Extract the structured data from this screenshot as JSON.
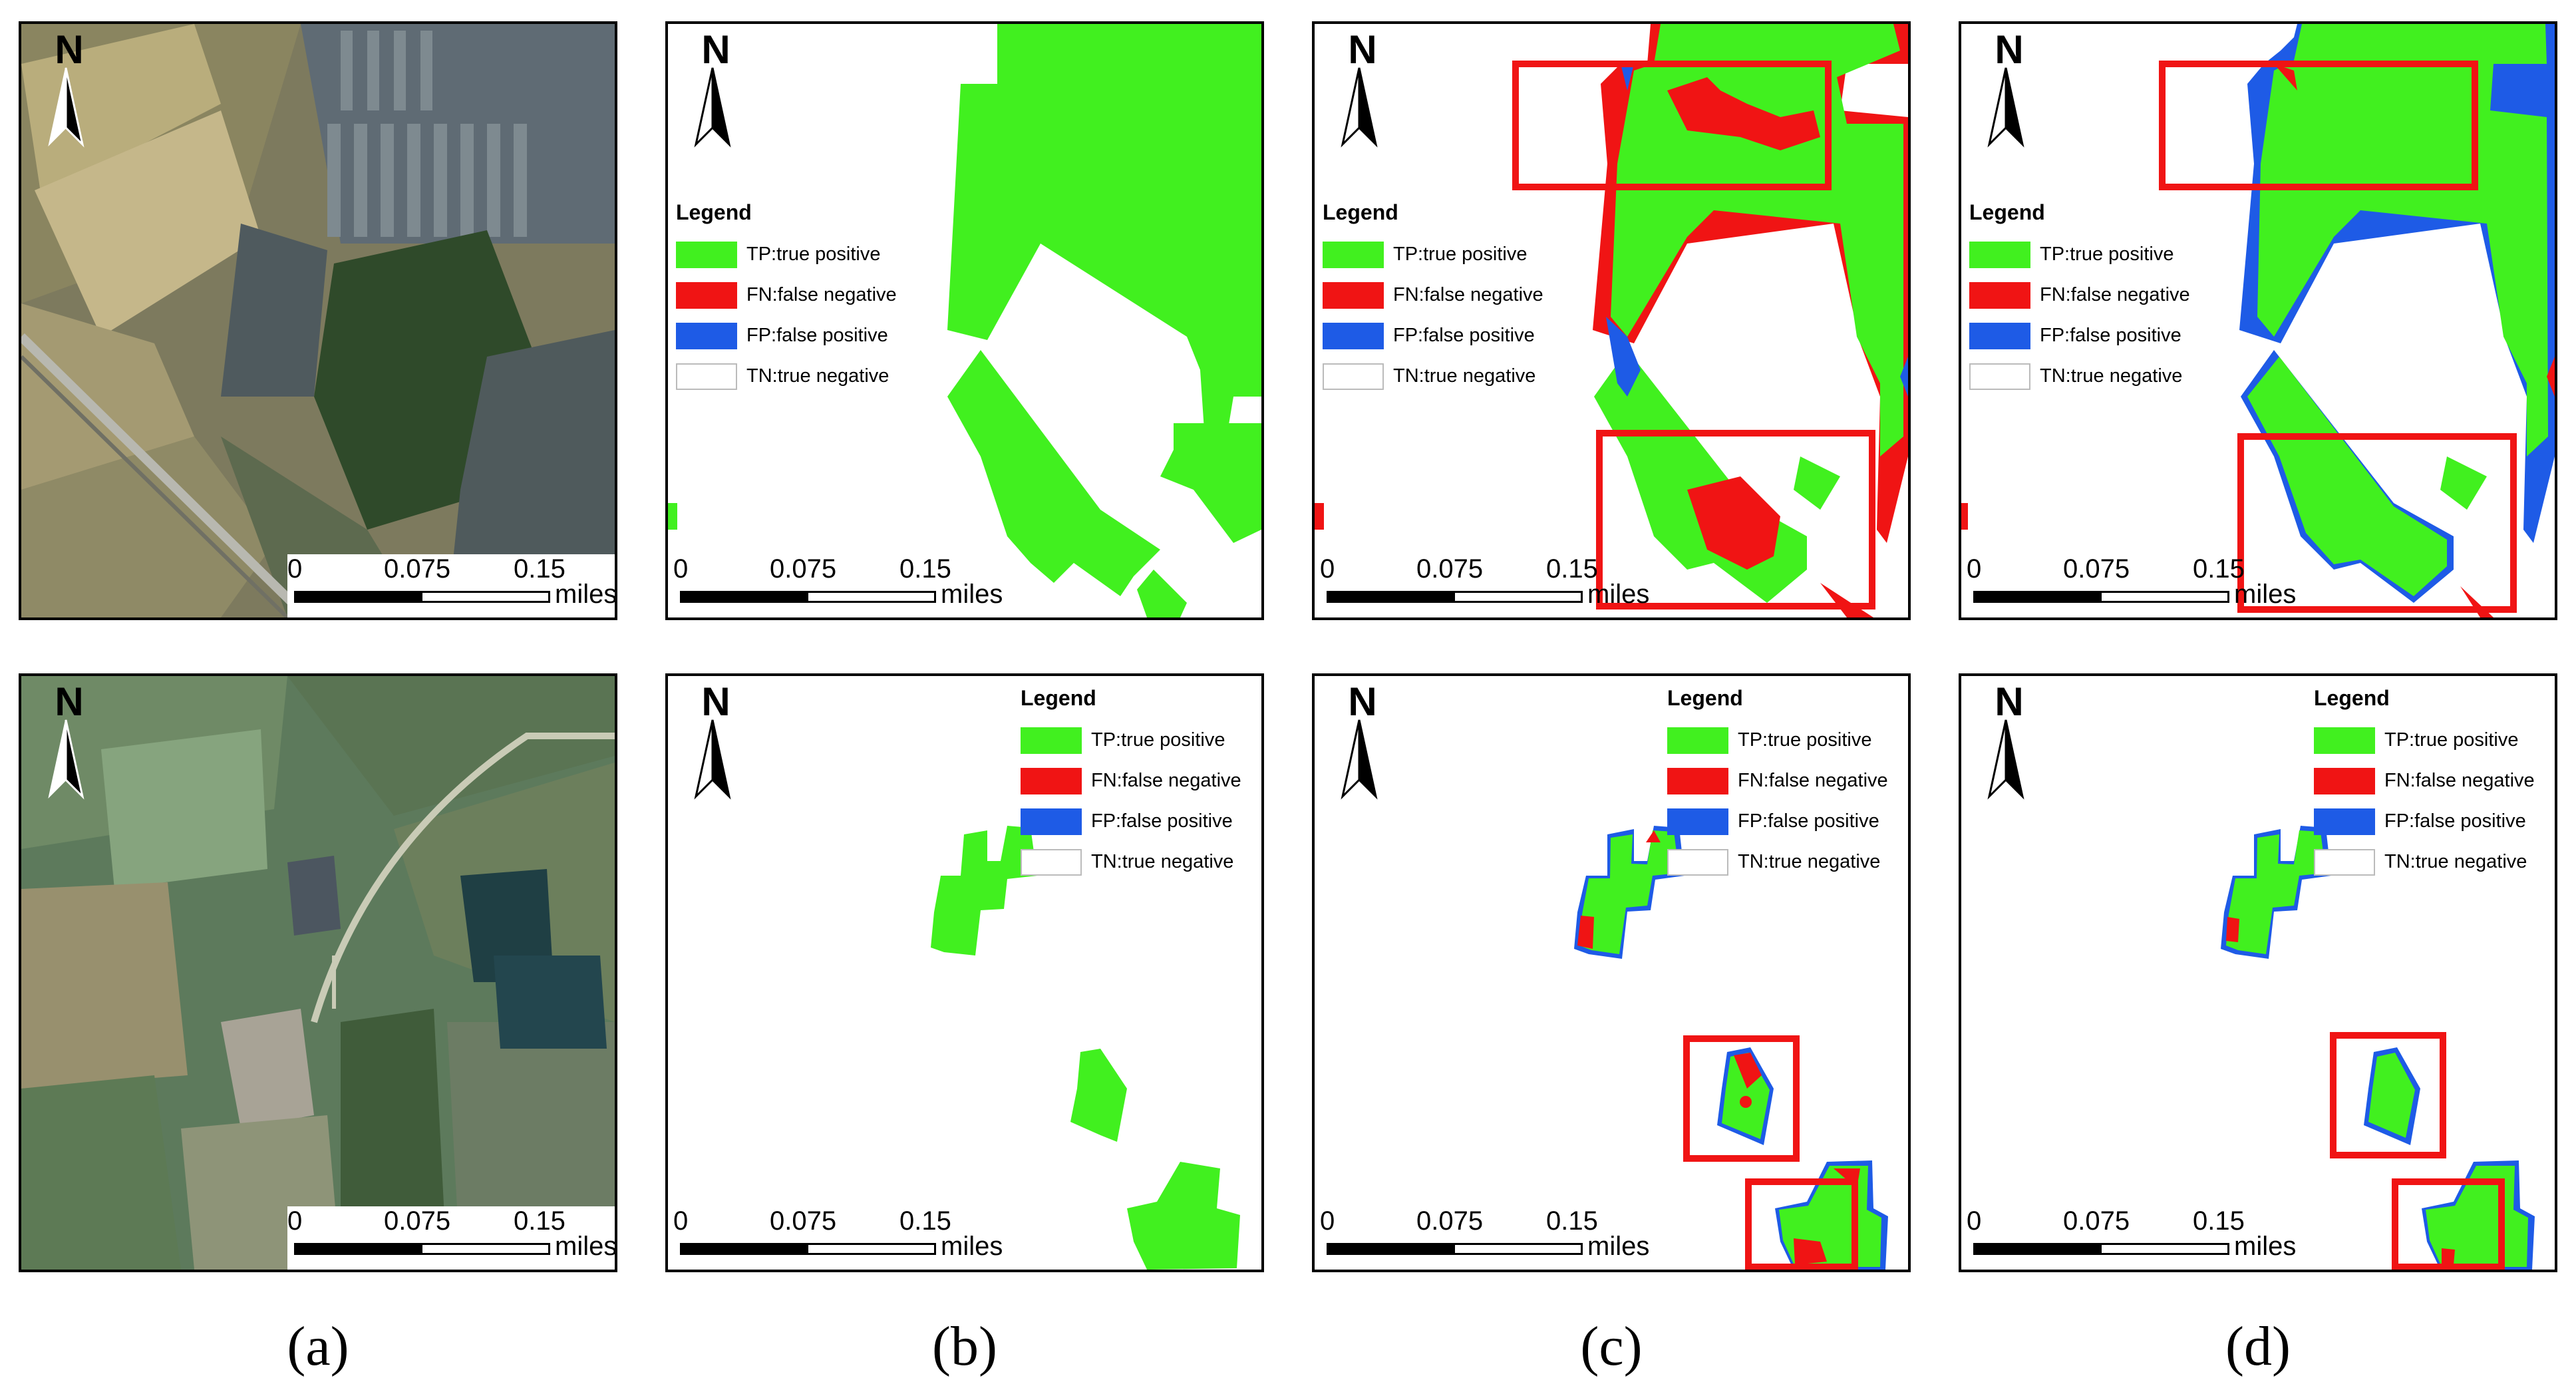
{
  "legend": {
    "title": "Legend",
    "items": [
      {
        "label": "TP:true positive",
        "color": "#41F01F"
      },
      {
        "label": "FN:false negative",
        "color": "#F01414"
      },
      {
        "label": "FP:false positive",
        "color": "#1E5BE6"
      },
      {
        "label": "TN:true negative",
        "color": "#FFFFFF"
      }
    ]
  },
  "north_label": "N",
  "scale": {
    "ticks": [
      "0",
      "0.075",
      "0.15"
    ],
    "unit": "miles"
  },
  "captions": [
    "(a)",
    "(b)",
    "(c)",
    "(d)"
  ],
  "colors": {
    "tp": "#41F01F",
    "fn": "#F01414",
    "fp": "#1E5BE6",
    "highlight": "#F01414"
  }
}
